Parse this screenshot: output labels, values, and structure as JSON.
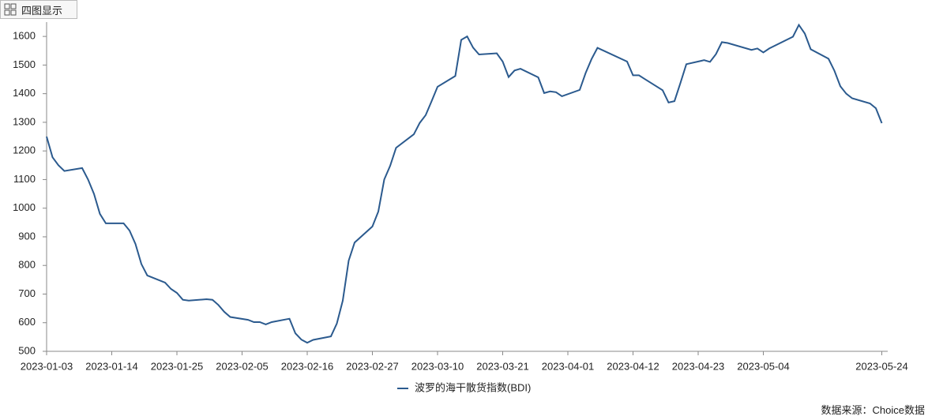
{
  "toolbar": {
    "button": "四图显示"
  },
  "source": "数据来源：Choice数据",
  "chart_data": {
    "type": "line",
    "x": [
      "2023-01-03",
      "2023-01-04",
      "2023-01-05",
      "2023-01-06",
      "2023-01-09",
      "2023-01-10",
      "2023-01-11",
      "2023-01-12",
      "2023-01-13",
      "2023-01-16",
      "2023-01-17",
      "2023-01-18",
      "2023-01-19",
      "2023-01-20",
      "2023-01-23",
      "2023-01-24",
      "2023-01-25",
      "2023-01-26",
      "2023-01-27",
      "2023-01-30",
      "2023-01-31",
      "2023-02-01",
      "2023-02-02",
      "2023-02-03",
      "2023-02-06",
      "2023-02-07",
      "2023-02-08",
      "2023-02-09",
      "2023-02-10",
      "2023-02-13",
      "2023-02-14",
      "2023-02-15",
      "2023-02-16",
      "2023-02-17",
      "2023-02-20",
      "2023-02-21",
      "2023-02-22",
      "2023-02-23",
      "2023-02-24",
      "2023-02-27",
      "2023-02-28",
      "2023-03-01",
      "2023-03-02",
      "2023-03-03",
      "2023-03-06",
      "2023-03-07",
      "2023-03-08",
      "2023-03-09",
      "2023-03-10",
      "2023-03-13",
      "2023-03-14",
      "2023-03-15",
      "2023-03-16",
      "2023-03-17",
      "2023-03-20",
      "2023-03-21",
      "2023-03-22",
      "2023-03-23",
      "2023-03-24",
      "2023-03-27",
      "2023-03-28",
      "2023-03-29",
      "2023-03-30",
      "2023-03-31",
      "2023-04-03",
      "2023-04-04",
      "2023-04-05",
      "2023-04-06",
      "2023-04-11",
      "2023-04-12",
      "2023-04-13",
      "2023-04-14",
      "2023-04-17",
      "2023-04-18",
      "2023-04-19",
      "2023-04-20",
      "2023-04-21",
      "2023-04-24",
      "2023-04-25",
      "2023-04-26",
      "2023-04-27",
      "2023-04-28",
      "2023-05-02",
      "2023-05-03",
      "2023-05-04",
      "2023-05-05",
      "2023-05-09",
      "2023-05-10",
      "2023-05-11",
      "2023-05-12",
      "2023-05-15",
      "2023-05-16",
      "2023-05-17",
      "2023-05-18",
      "2023-05-19",
      "2023-05-22",
      "2023-05-23",
      "2023-05-24"
    ],
    "series": [
      {
        "name": "波罗的海干散货指数(BDI)",
        "color": "#2b5a8e",
        "values": [
          1250,
          1178,
          1150,
          1130,
          1140,
          1100,
          1050,
          980,
          947,
          947,
          922,
          875,
          805,
          765,
          740,
          718,
          704,
          680,
          677,
          682,
          680,
          662,
          638,
          620,
          610,
          602,
          602,
          594,
          602,
          614,
          563,
          541,
          530,
          540,
          552,
          597,
          677,
          817,
          880,
          936,
          988,
          1100,
          1148,
          1211,
          1258,
          1298,
          1325,
          1374,
          1424,
          1462,
          1588,
          1600,
          1561,
          1537,
          1541,
          1512,
          1458,
          1481,
          1487,
          1457,
          1402,
          1408,
          1405,
          1391,
          1413,
          1472,
          1521,
          1560,
          1512,
          1464,
          1464,
          1451,
          1412,
          1369,
          1374,
          1437,
          1503,
          1517,
          1511,
          1538,
          1580,
          1577,
          1553,
          1558,
          1544,
          1558,
          1599,
          1640,
          1610,
          1555,
          1522,
          1480,
          1426,
          1400,
          1384,
          1366,
          1349,
          1297
        ]
      }
    ],
    "xlim": [
      "2023-01-03",
      "2023-05-25"
    ],
    "xticks": [
      "2023-01-03",
      "2023-01-14",
      "2023-01-25",
      "2023-02-05",
      "2023-02-16",
      "2023-02-27",
      "2023-03-10",
      "2023-03-21",
      "2023-04-01",
      "2023-04-12",
      "2023-04-23",
      "2023-05-04",
      "2023-05-24"
    ],
    "ylim": [
      500,
      1650
    ],
    "yticks": [
      500,
      600,
      700,
      800,
      900,
      1000,
      1100,
      1200,
      1300,
      1400,
      1500,
      1600
    ],
    "legend": "bottom"
  }
}
